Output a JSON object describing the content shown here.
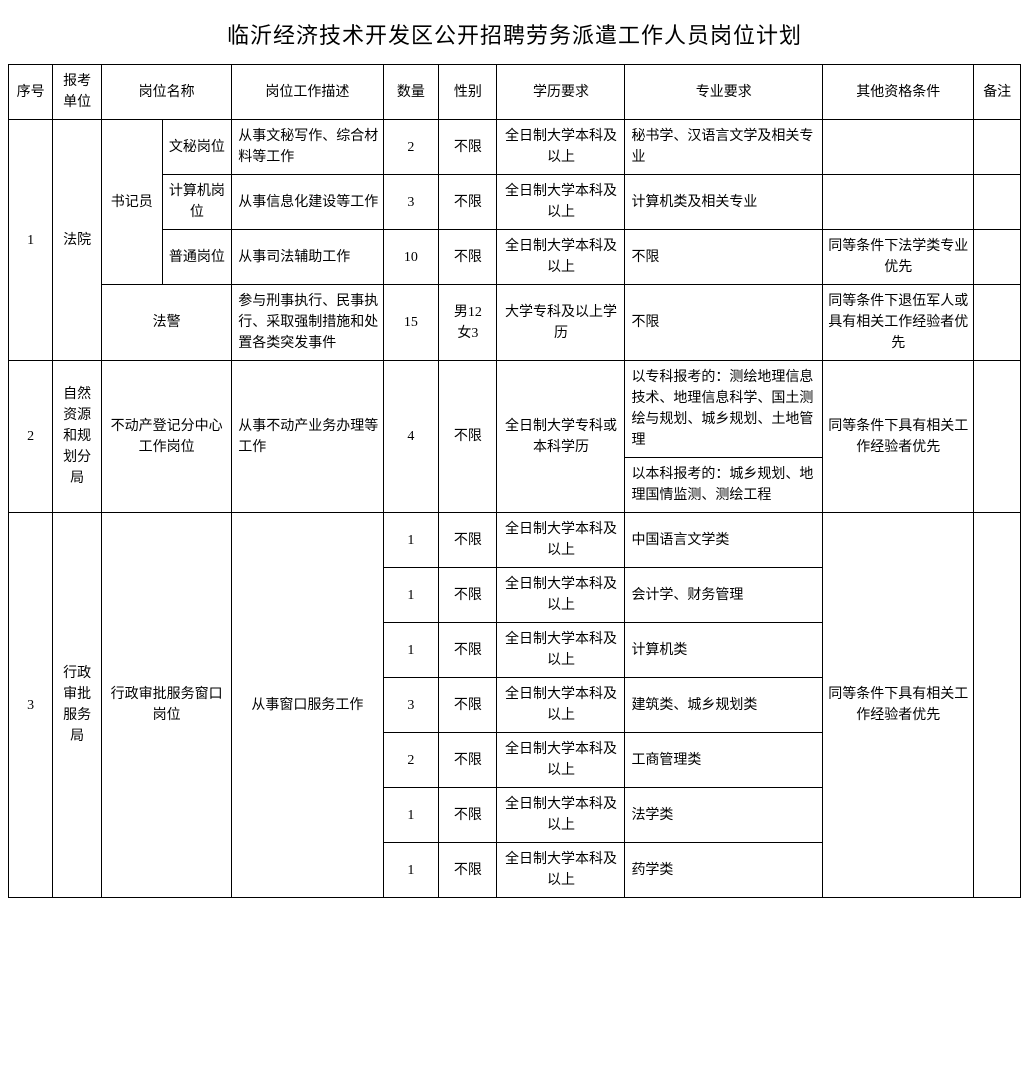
{
  "title": "临沂经济技术开发区公开招聘劳务派遣工作人员岗位计划",
  "headers": {
    "seq": "序号",
    "unit": "报考单位",
    "position": "岗位名称",
    "desc": "岗位工作描述",
    "qty": "数量",
    "gender": "性别",
    "edu": "学历要求",
    "major": "专业要求",
    "other": "其他资格条件",
    "note": "备注"
  },
  "group1": {
    "seq": "1",
    "unit": "法院",
    "subgroup": "书记员",
    "rows": [
      {
        "pos": "文秘岗位",
        "desc": "从事文秘写作、综合材料等工作",
        "qty": "2",
        "gender": "不限",
        "edu": "全日制大学本科及以上",
        "major": "秘书学、汉语言文学及相关专业",
        "other": "",
        "note": ""
      },
      {
        "pos": "计算机岗位",
        "desc": "从事信息化建设等工作",
        "qty": "3",
        "gender": "不限",
        "edu": "全日制大学本科及以上",
        "major": "计算机类及相关专业",
        "other": "",
        "note": ""
      },
      {
        "pos": "普通岗位",
        "desc": "从事司法辅助工作",
        "qty": "10",
        "gender": "不限",
        "edu": "全日制大学本科及以上",
        "major": "不限",
        "other": "同等条件下法学类专业优先",
        "note": ""
      }
    ],
    "row4": {
      "pos": "法警",
      "desc": "参与刑事执行、民事执行、采取强制措施和处置各类突发事件",
      "qty": "15",
      "gender": "男12\n女3",
      "edu": "大学专科及以上学历",
      "major": "不限",
      "other": "同等条件下退伍军人或具有相关工作经验者优先",
      "note": ""
    }
  },
  "group2": {
    "seq": "2",
    "unit": "自然资源和规划分局",
    "pos": "不动产登记分中心工作岗位",
    "desc": "从事不动产业务办理等工作",
    "qty": "4",
    "gender": "不限",
    "edu": "全日制大学专科或本科学历",
    "major1": "以专科报考的：测绘地理信息技术、地理信息科学、国土测绘与规划、城乡规划、土地管理",
    "major2": "以本科报考的：城乡规划、地理国情监测、测绘工程",
    "other": "同等条件下具有相关工作经验者优先",
    "note": ""
  },
  "group3": {
    "seq": "3",
    "unit": "行政审批服务局",
    "pos": "行政审批服务窗口岗位",
    "desc": "从事窗口服务工作",
    "other": "同等条件下具有相关工作经验者优先",
    "note": "",
    "rows": [
      {
        "qty": "1",
        "gender": "不限",
        "edu": "全日制大学本科及以上",
        "major": "中国语言文学类"
      },
      {
        "qty": "1",
        "gender": "不限",
        "edu": "全日制大学本科及以上",
        "major": "会计学、财务管理"
      },
      {
        "qty": "1",
        "gender": "不限",
        "edu": "全日制大学本科及以上",
        "major": "计算机类"
      },
      {
        "qty": "3",
        "gender": "不限",
        "edu": "全日制大学本科及以上",
        "major": "建筑类、城乡规划类"
      },
      {
        "qty": "2",
        "gender": "不限",
        "edu": "全日制大学本科及以上",
        "major": "工商管理类"
      },
      {
        "qty": "1",
        "gender": "不限",
        "edu": "全日制大学本科及以上",
        "major": "法学类"
      },
      {
        "qty": "1",
        "gender": "不限",
        "edu": "全日制大学本科及以上",
        "major": "药学类"
      }
    ]
  }
}
